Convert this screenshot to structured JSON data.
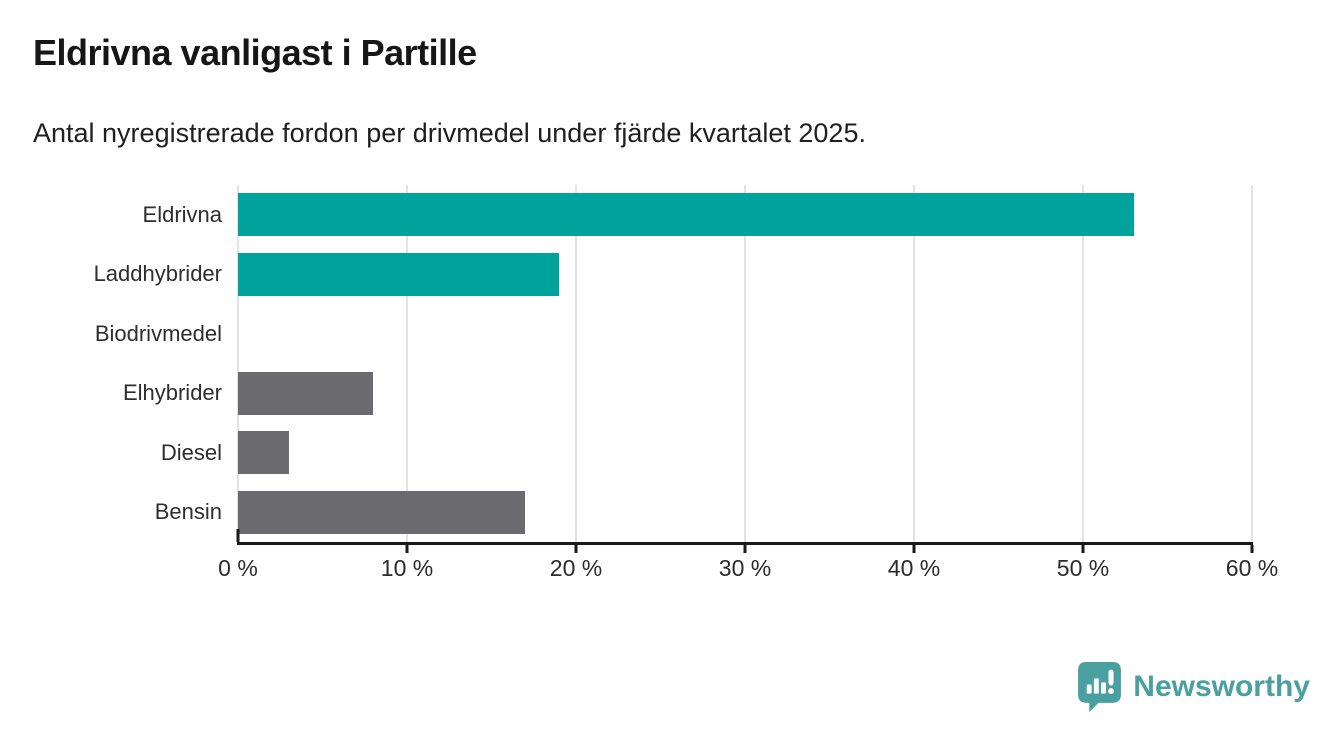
{
  "header": {
    "title": "Eldrivna vanligast i Partille",
    "subtitle": "Antal nyregistrerade fordon per drivmedel under fjärde kvartalet 2025."
  },
  "chart_data": {
    "type": "bar",
    "orientation": "horizontal",
    "title": "Eldrivna vanligast i Partille",
    "subtitle": "Antal nyregistrerade fordon per drivmedel under fjärde kvartalet 2025.",
    "categories": [
      "Eldrivna",
      "Laddhybrider",
      "Biodrivmedel",
      "Elhybrider",
      "Diesel",
      "Bensin"
    ],
    "values": [
      53,
      19,
      0,
      8,
      3,
      17
    ],
    "unit": "%",
    "xlim": [
      0,
      60
    ],
    "xticks": [
      0,
      10,
      20,
      30,
      40,
      50,
      60
    ],
    "xtick_labels": [
      "0 %",
      "10 %",
      "20 %",
      "30 %",
      "40 %",
      "50 %",
      "60 %"
    ],
    "bar_colors": [
      "#00a39b",
      "#00a39b",
      "#00a39b",
      "#6b6b6f",
      "#6b6b6f",
      "#6b6b6f"
    ],
    "grid": true,
    "legend_position": "none"
  },
  "colors": {
    "teal": "#00a39b",
    "gray": "#6b6b6f",
    "gridline": "#e3e3e3",
    "axis": "#1a1a1a",
    "brand": "#4aa0a0"
  },
  "footer": {
    "brand_label": "Newsworthy",
    "brand_icon": "newsworthy-speech-bubble-chart-icon"
  }
}
